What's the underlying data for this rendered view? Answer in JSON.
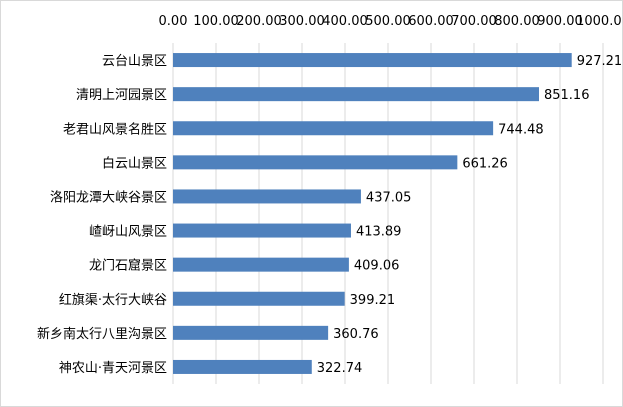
{
  "chart_data": {
    "type": "bar",
    "orientation": "horizontal",
    "categories": [
      "云台山景区",
      "清明上河园景区",
      "老君山风景名胜区",
      "白云山景区",
      "洛阳龙潭大峡谷景区",
      "嵖岈山风景区",
      "龙门石窟景区",
      "红旗渠·太行大峡谷",
      "新乡南太行八里沟景区",
      "神农山·青天河景区"
    ],
    "values": [
      927.21,
      851.16,
      744.48,
      661.26,
      437.05,
      413.89,
      409.06,
      399.21,
      360.76,
      322.74
    ],
    "value_labels": [
      "927.21",
      "851.16",
      "744.48",
      "661.26",
      "437.05",
      "413.89",
      "409.06",
      "399.21",
      "360.76",
      "322.74"
    ],
    "xlim": [
      0,
      1000
    ],
    "x_ticks": [
      "0.00",
      "100.00",
      "200.00",
      "300.00",
      "400.00",
      "500.00",
      "600.00",
      "700.00",
      "800.00",
      "900.00",
      "1000.00"
    ],
    "x_axis_position": "top",
    "grid": true,
    "title": "",
    "xlabel": "",
    "ylabel": "",
    "bar_color": "#4f81bd",
    "grid_color": "#d9d9d9"
  }
}
